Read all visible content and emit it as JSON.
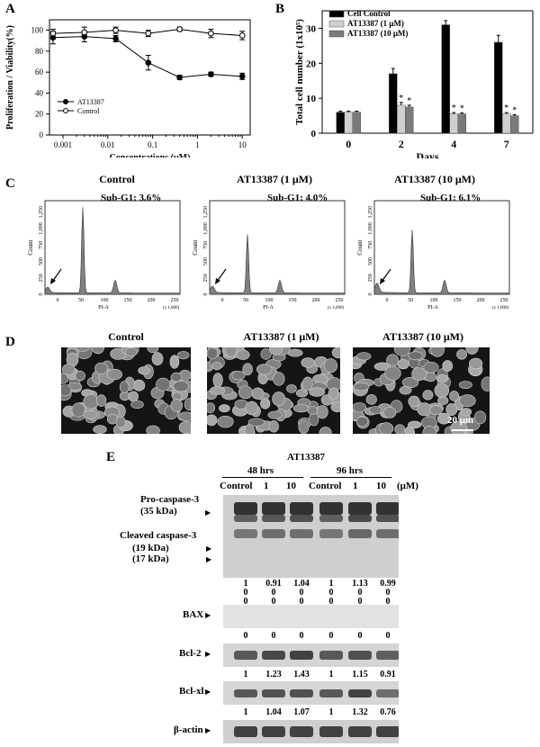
{
  "panels": {
    "A": "A",
    "B": "B",
    "C": "C",
    "D": "D",
    "E": "E"
  },
  "chart_data": [
    {
      "type": "line",
      "panel": "A",
      "xlabel": "Concentrations (μM)",
      "ylabel": "Proliferation / Viability(%)",
      "xscale": "log",
      "xlim": [
        0.0005,
        15
      ],
      "ylim": [
        0,
        110
      ],
      "xticks": [
        "0.001",
        "0.01",
        "0.1",
        "1",
        "10"
      ],
      "yticks": [
        "0",
        "20",
        "40",
        "60",
        "80",
        "100"
      ],
      "legend_position": "bottom-left",
      "series": [
        {
          "name": "AT13387",
          "marker": "filled-circle",
          "x": [
            0.0006,
            0.003,
            0.015,
            0.08,
            0.4,
            2,
            10
          ],
          "y": [
            93,
            94,
            92,
            69,
            55,
            58,
            56
          ],
          "err": [
            6,
            5,
            3,
            7,
            2,
            2,
            3
          ]
        },
        {
          "name": "Control",
          "marker": "open-circle",
          "x": [
            0.0006,
            0.003,
            0.015,
            0.08,
            0.4,
            2,
            10
          ],
          "y": [
            97,
            98,
            100,
            97,
            101,
            97,
            95
          ],
          "err": [
            4,
            5,
            3,
            3,
            2,
            4,
            4
          ]
        }
      ]
    },
    {
      "type": "bar",
      "panel": "B",
      "xlabel": "Days",
      "ylabel": "Total cell number (1x10⁵)",
      "ylim": [
        0,
        35
      ],
      "yticks": [
        "0",
        "10",
        "20",
        "30"
      ],
      "categories": [
        "0",
        "2",
        "4",
        "7"
      ],
      "legend_position": "top-left",
      "series": [
        {
          "name": "Cell Control",
          "color": "#000000",
          "values": [
            6,
            17,
            31,
            26
          ],
          "err": [
            0.3,
            1.5,
            1.2,
            2
          ]
        },
        {
          "name": "AT13387 (1 μM)",
          "color": "#cfcfcf",
          "values": [
            6,
            8,
            5.5,
            5.5
          ],
          "err": [
            0.3,
            0.8,
            0.4,
            0.4
          ]
        },
        {
          "name": "AT13387 (10 μM)",
          "color": "#7a7a7a",
          "values": [
            6,
            7.5,
            5.5,
            5
          ],
          "err": [
            0.3,
            0.5,
            0.3,
            0.3
          ]
        }
      ],
      "annotations": [
        "*",
        "*",
        "*",
        "*",
        "*",
        "*"
      ]
    }
  ],
  "flow": {
    "panels": [
      {
        "title": "Control",
        "subg1": "Sub-G1: 3.6%"
      },
      {
        "title": "AT13387 (1 μM)",
        "subg1": "Sub-G1: 4.0%"
      },
      {
        "title": "AT13387 (10 μM)",
        "subg1": "Sub-G1: 6.1%"
      }
    ],
    "ylabel": "Count",
    "xlabel": "PI-A",
    "xunit": "(x 1,000)",
    "yticks": [
      "0",
      "250",
      "500",
      "750",
      "1,000",
      "1,250"
    ],
    "xticks": [
      "0",
      "50",
      "100",
      "150",
      "200",
      "250"
    ]
  },
  "micro": {
    "titles": [
      "Control",
      "AT13387 (1 μM)",
      "AT13387 (10 μM)"
    ],
    "scalebar": "20 μm"
  },
  "western": {
    "drug": "AT13387",
    "time_groups": [
      "48 hrs",
      "96 hrs"
    ],
    "lanes": [
      "Control",
      "1",
      "10",
      "Control",
      "1",
      "10"
    ],
    "unit": "(μM)",
    "rows": [
      {
        "label": "Pro-caspase-3",
        "sub": "(35 kDa)"
      },
      {
        "label": "Cleaved caspase-3",
        "sub": "(19 kDa)"
      },
      {
        "label": "(17 kDa)"
      }
    ],
    "caspase_vals": [
      [
        "1",
        "0.91",
        "1.04",
        "1",
        "1.13",
        "0.99"
      ],
      [
        "0",
        "0",
        "0",
        "0",
        "0",
        "0"
      ],
      [
        "0",
        "0",
        "0",
        "0",
        "0",
        "0"
      ]
    ],
    "bax": {
      "label": "BAX",
      "vals": [
        "0",
        "0",
        "0",
        "0",
        "0",
        "0"
      ]
    },
    "bcl2": {
      "label": "Bcl-2",
      "vals": [
        "1",
        "1.23",
        "1.43",
        "1",
        "1.15",
        "0.91"
      ]
    },
    "bclxl": {
      "label": "Bcl-xl",
      "vals": [
        "1",
        "1.04",
        "1.07",
        "1",
        "1.32",
        "0.76"
      ]
    },
    "actin": {
      "label": "β-actin"
    }
  }
}
